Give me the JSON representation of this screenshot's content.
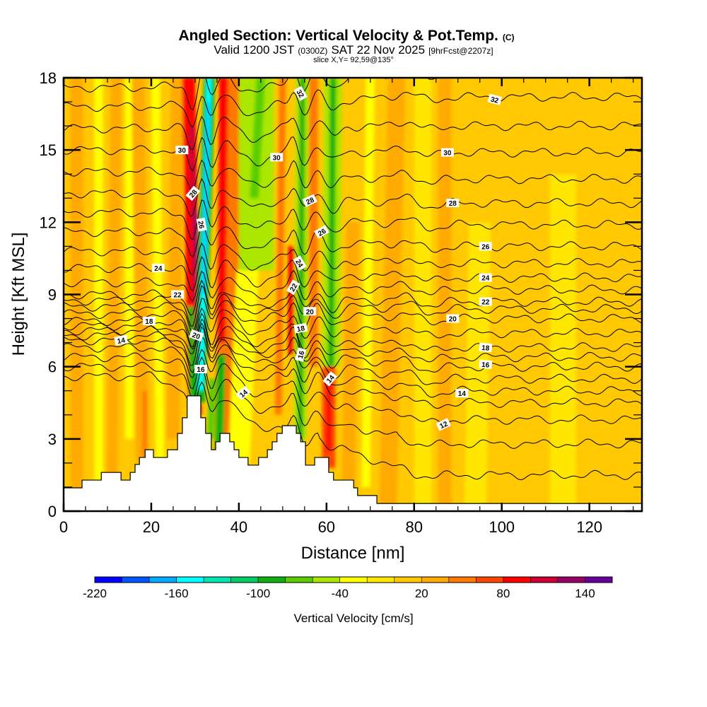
{
  "header": {
    "title": "Angled Section: Vertical Velocity & Pot.Temp.",
    "title_suffix": "(C)",
    "valid_prefix": "Valid 1200 JST",
    "valid_utc": "(0300Z)",
    "valid_date": "SAT 22 Nov 2025",
    "forecast": "[9hrFcst@2207z]",
    "slice": "slice X,Y= 92,59@135°"
  },
  "chart_data": {
    "type": "heatmap",
    "title": "Angled Section: Vertical Velocity & Pot.Temp.",
    "xlabel": "Distance [nm]",
    "ylabel": "Height [Kft MSL]",
    "xlim": [
      0,
      132
    ],
    "ylim": [
      0,
      18
    ],
    "xticks": [
      0,
      20,
      40,
      60,
      80,
      100,
      120
    ],
    "xtick_labels": [
      "0",
      "20",
      "40",
      "60",
      "80",
      "100",
      "120"
    ],
    "yticks": [
      0,
      3,
      6,
      9,
      12,
      15,
      18
    ],
    "ytick_labels": [
      "0",
      "3",
      "6",
      "9",
      "12",
      "15",
      "18"
    ],
    "colorbar": {
      "label": "Vertical Velocity [cm/s]",
      "bounds": [
        -220,
        160
      ],
      "step": 20,
      "tick_values": [
        -220,
        -160,
        -100,
        -40,
        20,
        80,
        140
      ],
      "tick_labels": [
        "-220",
        "-160",
        "-100",
        "-40",
        "20",
        "80",
        "140"
      ],
      "colors": [
        "#0000ff",
        "#0055ff",
        "#00aaff",
        "#00ffff",
        "#00e6b0",
        "#00cc66",
        "#10b010",
        "#5acd00",
        "#aae600",
        "#ffff00",
        "#ffe600",
        "#ffc800",
        "#ffaa00",
        "#ff7800",
        "#ff4600",
        "#ff0000",
        "#cc0033",
        "#990066",
        "#660099"
      ]
    },
    "background_velocity": 5,
    "velocity_features": [
      {
        "x0": 3,
        "y0": 0,
        "x1": 3,
        "y1": 18,
        "w": 3,
        "v": 25
      },
      {
        "x0": 8,
        "y0": 0,
        "x1": 8,
        "y1": 18,
        "w": 2,
        "v": -30
      },
      {
        "x0": 11,
        "y0": 0,
        "x1": 12,
        "y1": 18,
        "w": 2.5,
        "v": 25
      },
      {
        "x0": 15,
        "y0": 3,
        "x1": 15,
        "y1": 18,
        "w": 2,
        "v": -30
      },
      {
        "x0": 18,
        "y0": 2,
        "x1": 17,
        "y1": 18,
        "w": 3,
        "v": 25
      },
      {
        "x0": 18.5,
        "y0": 2,
        "x1": 18.5,
        "y1": 5,
        "w": 1,
        "v": 50
      },
      {
        "x0": 22,
        "y0": 2,
        "x1": 21,
        "y1": 18,
        "w": 2,
        "v": -30
      },
      {
        "x0": 25,
        "y0": 3,
        "x1": 26,
        "y1": 18,
        "w": 3,
        "v": 30
      },
      {
        "x0": 37,
        "y0": 3,
        "x1": 38,
        "y1": 18,
        "w": 5,
        "v": 45
      },
      {
        "x0": 30,
        "y0": 4,
        "x1": 28.5,
        "y1": 18,
        "w": 3,
        "v": 90
      },
      {
        "x0": 30.5,
        "y0": 6,
        "x1": 29.3,
        "y1": 16,
        "w": 1.4,
        "v": 110
      },
      {
        "x0": 30.8,
        "y0": 8,
        "x1": 30.2,
        "y1": 12.5,
        "w": 0.8,
        "v": 130
      },
      {
        "x0": 29.5,
        "y0": 4,
        "x1": 29,
        "y1": 8.5,
        "w": 1.4,
        "v": -90
      },
      {
        "x0": 31,
        "y0": 4.5,
        "x1": 33.3,
        "y1": 18,
        "w": 2.6,
        "v": -90
      },
      {
        "x0": 31.3,
        "y0": 5,
        "x1": 33.2,
        "y1": 18,
        "w": 1.3,
        "v": -150
      },
      {
        "x0": 32,
        "y0": 9,
        "x1": 33,
        "y1": 17,
        "w": 0.5,
        "v": -170
      },
      {
        "x0": 36,
        "y0": 7,
        "x1": 36.5,
        "y1": 18,
        "w": 2,
        "v": 90
      },
      {
        "x0": 35.5,
        "y0": 2.5,
        "x1": 36,
        "y1": 6.5,
        "w": 2,
        "v": -100
      },
      {
        "x0": 33.5,
        "y0": 3,
        "x1": 34,
        "y1": 5.5,
        "w": 1.5,
        "v": -70
      },
      {
        "x0": 40,
        "y0": 2,
        "x1": 42,
        "y1": 10,
        "w": 5,
        "v": -30
      },
      {
        "x0": 44,
        "y0": 10,
        "x1": 44,
        "y1": 18,
        "w": 8,
        "v": -55
      },
      {
        "x0": 43.5,
        "y0": 13,
        "x1": 45,
        "y1": 18,
        "w": 2,
        "v": -75
      },
      {
        "x0": 49,
        "y0": 4,
        "x1": 50,
        "y1": 18,
        "w": 1.5,
        "v": 40
      },
      {
        "x0": 52,
        "y0": 6.5,
        "x1": 52,
        "y1": 11,
        "w": 1.5,
        "v": 85
      },
      {
        "x0": 54,
        "y0": 3,
        "x1": 54.5,
        "y1": 18,
        "w": 3,
        "v": -50
      },
      {
        "x0": 54,
        "y0": 3,
        "x1": 54.5,
        "y1": 18,
        "w": 1.2,
        "v": -85
      },
      {
        "x0": 57,
        "y0": 6,
        "x1": 57,
        "y1": 18,
        "w": 2,
        "v": 40
      },
      {
        "x0": 61,
        "y0": 6,
        "x1": 61.5,
        "y1": 18,
        "w": 4,
        "v": -50
      },
      {
        "x0": 61,
        "y0": 6,
        "x1": 61.5,
        "y1": 18,
        "w": 1.4,
        "v": -85
      },
      {
        "x0": 60.5,
        "y0": 1.8,
        "x1": 60.5,
        "y1": 6,
        "w": 3,
        "v": 60
      },
      {
        "x0": 60.5,
        "y0": 2.5,
        "x1": 60.5,
        "y1": 5.5,
        "w": 1.2,
        "v": 95
      },
      {
        "x0": 65,
        "y0": 1,
        "x1": 66,
        "y1": 12,
        "w": 3,
        "v": 30
      },
      {
        "x0": 69,
        "y0": 1,
        "x1": 70,
        "y1": 18,
        "w": 2,
        "v": -30
      },
      {
        "x0": 74,
        "y0": 0,
        "x1": 76,
        "y1": 18,
        "w": 4,
        "v": 25
      },
      {
        "x0": 82,
        "y0": 0,
        "x1": 82,
        "y1": 18,
        "w": 4,
        "v": -10
      },
      {
        "x0": 87,
        "y0": 0,
        "x1": 87,
        "y1": 18,
        "w": 3,
        "v": 25
      },
      {
        "x0": 94,
        "y0": 0,
        "x1": 95,
        "y1": 12,
        "w": 5,
        "v": -10
      },
      {
        "x0": 104,
        "y0": 0,
        "x1": 103,
        "y1": 18,
        "w": 8,
        "v": 15
      },
      {
        "x0": 114,
        "y0": 0,
        "x1": 114,
        "y1": 14,
        "w": 6,
        "v": -10
      },
      {
        "x0": 126,
        "y0": 4,
        "x1": 127,
        "y1": 10,
        "w": 5,
        "v": 15
      }
    ],
    "terrain": [
      [
        0,
        0.97
      ],
      [
        4.2,
        1.29
      ],
      [
        8.6,
        1.61
      ],
      [
        13.1,
        1.29
      ],
      [
        15.2,
        1.61
      ],
      [
        16.3,
        1.94
      ],
      [
        17.3,
        2.23
      ],
      [
        18.6,
        2.55
      ],
      [
        20.5,
        2.23
      ],
      [
        23.7,
        2.55
      ],
      [
        26.0,
        3.23
      ],
      [
        27.1,
        3.88
      ],
      [
        28.2,
        4.79
      ],
      [
        31.3,
        3.88
      ],
      [
        32.4,
        3.23
      ],
      [
        33.7,
        2.55
      ],
      [
        34.7,
        2.88
      ],
      [
        35.7,
        3.23
      ],
      [
        37.9,
        2.88
      ],
      [
        38.9,
        2.55
      ],
      [
        40.0,
        2.23
      ],
      [
        42.1,
        1.91
      ],
      [
        44.5,
        2.23
      ],
      [
        46.5,
        2.55
      ],
      [
        47.6,
        2.88
      ],
      [
        48.7,
        3.23
      ],
      [
        49.9,
        3.55
      ],
      [
        53.1,
        3.23
      ],
      [
        54.1,
        2.88
      ],
      [
        55.2,
        1.91
      ],
      [
        57.3,
        2.23
      ],
      [
        60.5,
        1.61
      ],
      [
        61.6,
        1.29
      ],
      [
        66.2,
        0.97
      ],
      [
        67.1,
        0.65
      ],
      [
        71.5,
        0.32
      ],
      [
        132,
        0.32
      ]
    ],
    "potential_temperature": {
      "units": "C",
      "levels": [
        10,
        11,
        12,
        13,
        14,
        15,
        16,
        17,
        18,
        19,
        20,
        21,
        22,
        23,
        24,
        25,
        26,
        27,
        28,
        29,
        30,
        31,
        32,
        33
      ],
      "height_west": [
        5.6,
        6.0,
        6.4,
        6.8,
        7.1,
        7.3,
        7.5,
        7.7,
        7.9,
        8.2,
        8.5,
        8.75,
        9.0,
        9.5,
        10.1,
        10.8,
        11.6,
        12.4,
        13.2,
        14.1,
        15.0,
        15.9,
        16.8,
        17.6
      ],
      "height_east": [
        1.5,
        2.8,
        3.8,
        4.5,
        5.0,
        5.5,
        6.0,
        6.4,
        6.8,
        7.4,
        8.0,
        8.4,
        8.7,
        9.2,
        9.7,
        10.3,
        11.0,
        11.9,
        12.8,
        13.8,
        14.9,
        16.0,
        17.2,
        18.2
      ],
      "labels": [
        {
          "text": "32",
          "x": 54.1,
          "y": 17.35,
          "rot": 60
        },
        {
          "text": "32",
          "x": 98.4,
          "y": 17.1,
          "rot": 15
        },
        {
          "text": "30",
          "x": 27.0,
          "y": 15.0,
          "rot": 0
        },
        {
          "text": "30",
          "x": 48.6,
          "y": 14.7,
          "rot": 0
        },
        {
          "text": "30",
          "x": 87.6,
          "y": 14.9,
          "rot": 0
        },
        {
          "text": "28",
          "x": 29.5,
          "y": 13.2,
          "rot": -50
        },
        {
          "text": "28",
          "x": 56.2,
          "y": 12.9,
          "rot": -25
        },
        {
          "text": "28",
          "x": 88.8,
          "y": 12.8,
          "rot": 0
        },
        {
          "text": "26",
          "x": 31.5,
          "y": 11.9,
          "rot": 80
        },
        {
          "text": "26",
          "x": 58.9,
          "y": 11.6,
          "rot": -30
        },
        {
          "text": "26",
          "x": 96.3,
          "y": 11.0,
          "rot": 0
        },
        {
          "text": "24",
          "x": 21.6,
          "y": 10.1,
          "rot": 0
        },
        {
          "text": "24",
          "x": 53.9,
          "y": 10.3,
          "rot": 60
        },
        {
          "text": "24",
          "x": 96.3,
          "y": 9.7,
          "rot": 0
        },
        {
          "text": "22",
          "x": 26.0,
          "y": 9.0,
          "rot": 0
        },
        {
          "text": "22",
          "x": 52.4,
          "y": 9.3,
          "rot": -60
        },
        {
          "text": "22",
          "x": 96.3,
          "y": 8.7,
          "rot": 0
        },
        {
          "text": "20",
          "x": 30.3,
          "y": 7.3,
          "rot": 20
        },
        {
          "text": "20",
          "x": 56.2,
          "y": 8.3,
          "rot": 0
        },
        {
          "text": "20",
          "x": 88.8,
          "y": 8.0,
          "rot": 0
        },
        {
          "text": "18",
          "x": 19.5,
          "y": 7.9,
          "rot": 0
        },
        {
          "text": "18",
          "x": 54.1,
          "y": 7.6,
          "rot": -10
        },
        {
          "text": "18",
          "x": 96.3,
          "y": 6.8,
          "rot": 5
        },
        {
          "text": "16",
          "x": 31.3,
          "y": 5.9,
          "rot": 0
        },
        {
          "text": "16",
          "x": 54.1,
          "y": 6.5,
          "rot": -75
        },
        {
          "text": "16",
          "x": 96.3,
          "y": 6.1,
          "rot": 5
        },
        {
          "text": "14",
          "x": 13.1,
          "y": 7.1,
          "rot": -10
        },
        {
          "text": "14",
          "x": 41.0,
          "y": 4.9,
          "rot": -40
        },
        {
          "text": "14",
          "x": 60.8,
          "y": 5.5,
          "rot": -50
        },
        {
          "text": "14",
          "x": 90.9,
          "y": 4.9,
          "rot": 0
        },
        {
          "text": "12",
          "x": 86.7,
          "y": 3.6,
          "rot": -25
        }
      ]
    }
  }
}
